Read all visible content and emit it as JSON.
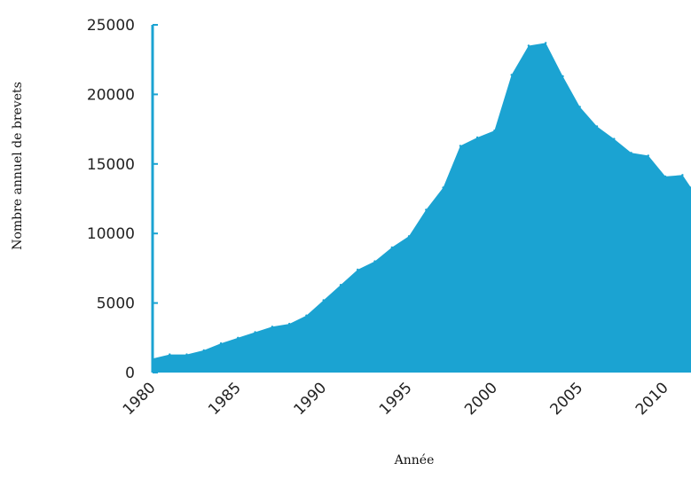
{
  "chart_data": {
    "type": "area",
    "xlabel": "Année",
    "ylabel": "Nombre annuel de brevets",
    "xlim": [
      1980,
      2011.5
    ],
    "ylim": [
      0,
      25000
    ],
    "x_ticks": [
      1980,
      1985,
      1990,
      1995,
      2000,
      2005,
      2010
    ],
    "y_ticks": [
      0,
      5000,
      10000,
      15000,
      20000,
      25000
    ],
    "grid": false,
    "legend": "none",
    "colors": {
      "fill": "#1ba3d2",
      "axis": "#1ba3d2"
    },
    "series": [
      {
        "x": [
          1980,
          1981,
          1982,
          1983,
          1984,
          1985,
          1986,
          1987,
          1988,
          1989,
          1990,
          1991,
          1992,
          1993,
          1994,
          1995,
          1996,
          1997,
          1998,
          1999,
          2000,
          2001,
          2002,
          2003,
          2004,
          2005,
          2006,
          2007,
          2008,
          2009,
          2010,
          2011,
          2011.5
        ],
        "values": [
          1000,
          1300,
          1300,
          1600,
          2100,
          2500,
          2900,
          3300,
          3500,
          4100,
          5200,
          6300,
          7400,
          8000,
          9000,
          9800,
          11700,
          13300,
          16300,
          16900,
          17400,
          21400,
          23500,
          23700,
          21300,
          19100,
          17700,
          16800,
          15800,
          15600,
          14100,
          14200,
          13300
        ]
      }
    ]
  }
}
